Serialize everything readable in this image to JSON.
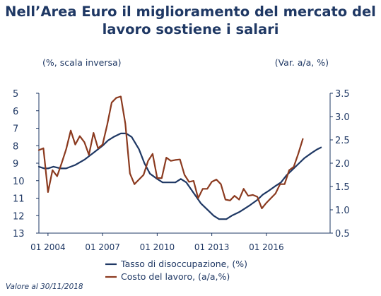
{
  "chart_data": {
    "type": "line",
    "title_lines": [
      "Nell’Area Euro il miglioramento del mercato del",
      "lavoro sostiene i salari"
    ],
    "left_axis_label": "(%, scala inversa)",
    "right_axis_label": "(Var. a/a, %)",
    "left_axis": {
      "min": 5,
      "max": 13,
      "inverted": true,
      "ticks": [
        "5",
        "6",
        "7",
        "8",
        "9",
        "10",
        "11",
        "12",
        "13"
      ]
    },
    "right_axis": {
      "min": 0.5,
      "max": 3.5,
      "ticks": [
        "3.5",
        "3.0",
        "2.5",
        "2.0",
        "1.5",
        "1.0",
        "0.5"
      ]
    },
    "x_ticks": [
      "01 2004",
      "01 2007",
      "01 2010",
      "01 2013",
      "01 2016"
    ],
    "x_range": [
      2003.5,
      2019.5
    ],
    "grid": false,
    "legend_position": "bottom",
    "series": [
      {
        "name": "Tasso di disoccupazione, (%)",
        "axis": "left",
        "color": "#1f3864",
        "points": [
          [
            2003.5,
            9.2
          ],
          [
            2003.8,
            9.3
          ],
          [
            2004.0,
            9.3
          ],
          [
            2004.3,
            9.2
          ],
          [
            2004.7,
            9.3
          ],
          [
            2005.0,
            9.3
          ],
          [
            2005.5,
            9.1
          ],
          [
            2006.0,
            8.8
          ],
          [
            2006.5,
            8.4
          ],
          [
            2007.0,
            8.0
          ],
          [
            2007.3,
            7.7
          ],
          [
            2007.6,
            7.5
          ],
          [
            2008.0,
            7.3
          ],
          [
            2008.3,
            7.3
          ],
          [
            2008.6,
            7.5
          ],
          [
            2009.0,
            8.2
          ],
          [
            2009.3,
            9.0
          ],
          [
            2009.6,
            9.6
          ],
          [
            2010.0,
            9.9
          ],
          [
            2010.3,
            10.1
          ],
          [
            2010.6,
            10.1
          ],
          [
            2011.0,
            10.1
          ],
          [
            2011.3,
            9.9
          ],
          [
            2011.6,
            10.1
          ],
          [
            2012.0,
            10.7
          ],
          [
            2012.4,
            11.3
          ],
          [
            2012.8,
            11.7
          ],
          [
            2013.1,
            12.0
          ],
          [
            2013.4,
            12.2
          ],
          [
            2013.8,
            12.2
          ],
          [
            2014.1,
            12.0
          ],
          [
            2014.5,
            11.8
          ],
          [
            2014.8,
            11.6
          ],
          [
            2015.1,
            11.4
          ],
          [
            2015.5,
            11.1
          ],
          [
            2015.8,
            10.8
          ],
          [
            2016.1,
            10.6
          ],
          [
            2016.5,
            10.3
          ],
          [
            2016.8,
            10.1
          ],
          [
            2017.1,
            9.7
          ],
          [
            2017.5,
            9.3
          ],
          [
            2017.8,
            9.0
          ],
          [
            2018.1,
            8.7
          ],
          [
            2018.5,
            8.4
          ],
          [
            2018.8,
            8.2
          ],
          [
            2019.0,
            8.1
          ]
        ]
      },
      {
        "name": "Costo del lavoro, (a/a,%)",
        "axis": "right",
        "color": "#8b3a1f",
        "points": [
          [
            2003.5,
            2.28
          ],
          [
            2003.75,
            2.32
          ],
          [
            2004.0,
            1.38
          ],
          [
            2004.25,
            1.85
          ],
          [
            2004.5,
            1.72
          ],
          [
            2004.75,
            2.0
          ],
          [
            2005.0,
            2.3
          ],
          [
            2005.25,
            2.7
          ],
          [
            2005.5,
            2.4
          ],
          [
            2005.75,
            2.58
          ],
          [
            2006.0,
            2.45
          ],
          [
            2006.25,
            2.18
          ],
          [
            2006.5,
            2.65
          ],
          [
            2006.75,
            2.32
          ],
          [
            2007.0,
            2.4
          ],
          [
            2007.25,
            2.82
          ],
          [
            2007.5,
            3.3
          ],
          [
            2007.75,
            3.4
          ],
          [
            2008.0,
            3.43
          ],
          [
            2008.25,
            2.85
          ],
          [
            2008.5,
            1.78
          ],
          [
            2008.75,
            1.55
          ],
          [
            2009.0,
            1.65
          ],
          [
            2009.25,
            1.75
          ],
          [
            2009.5,
            2.05
          ],
          [
            2009.75,
            2.2
          ],
          [
            2010.0,
            1.68
          ],
          [
            2010.25,
            1.68
          ],
          [
            2010.5,
            2.12
          ],
          [
            2010.75,
            2.05
          ],
          [
            2011.0,
            2.07
          ],
          [
            2011.25,
            2.08
          ],
          [
            2011.5,
            1.75
          ],
          [
            2011.75,
            1.6
          ],
          [
            2012.0,
            1.62
          ],
          [
            2012.25,
            1.25
          ],
          [
            2012.5,
            1.45
          ],
          [
            2012.75,
            1.45
          ],
          [
            2013.0,
            1.6
          ],
          [
            2013.25,
            1.65
          ],
          [
            2013.5,
            1.55
          ],
          [
            2013.75,
            1.22
          ],
          [
            2014.0,
            1.2
          ],
          [
            2014.25,
            1.3
          ],
          [
            2014.5,
            1.22
          ],
          [
            2014.75,
            1.45
          ],
          [
            2015.0,
            1.3
          ],
          [
            2015.25,
            1.32
          ],
          [
            2015.5,
            1.28
          ],
          [
            2015.75,
            1.03
          ],
          [
            2016.0,
            1.15
          ],
          [
            2016.25,
            1.25
          ],
          [
            2016.5,
            1.35
          ],
          [
            2016.75,
            1.55
          ],
          [
            2017.0,
            1.55
          ],
          [
            2017.25,
            1.85
          ],
          [
            2017.5,
            1.92
          ],
          [
            2017.75,
            2.2
          ],
          [
            2018.0,
            2.52
          ]
        ]
      }
    ]
  },
  "footnote": "Valore al 30/11/2018"
}
